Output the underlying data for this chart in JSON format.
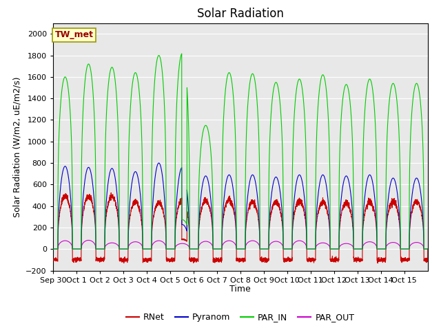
{
  "title": "Solar Radiation",
  "ylabel": "Solar Radiation (W/m2, uE/m2/s)",
  "xlabel": "Time",
  "site_label": "TW_met",
  "ylim": [
    -200,
    2100
  ],
  "yticks": [
    -200,
    0,
    200,
    400,
    600,
    800,
    1000,
    1200,
    1400,
    1600,
    1800,
    2000
  ],
  "bg_color": "#e8e8e8",
  "line_colors": {
    "RNet": "#cc0000",
    "Pyranom": "#0000cc",
    "PAR_IN": "#00cc00",
    "PAR_OUT": "#cc00cc"
  },
  "n_days": 16,
  "xtick_labels": [
    "Sep 30",
    "Oct 1",
    "Oct 2",
    "Oct 3",
    "Oct 4",
    "Oct 5",
    "Oct 6",
    "Oct 7",
    "Oct 8",
    "Oct 9",
    "Oct 10",
    "Oct 11",
    "Oct 12",
    "Oct 13",
    "Oct 14",
    "Oct 15"
  ],
  "PAR_IN_peaks": [
    1600,
    1720,
    1690,
    1640,
    1800,
    1820,
    1150,
    1640,
    1630,
    1550,
    1580,
    1620,
    1530,
    1580,
    1540,
    1540
  ],
  "Pyranom_peaks": [
    770,
    760,
    750,
    720,
    800,
    760,
    680,
    690,
    690,
    670,
    690,
    690,
    680,
    690,
    660,
    660
  ],
  "RNet_peaks": [
    490,
    490,
    490,
    440,
    430,
    460,
    450,
    460,
    440,
    440,
    450,
    440,
    430,
    440,
    445,
    445
  ],
  "PAR_OUT_peaks": [
    78,
    82,
    58,
    68,
    78,
    52,
    72,
    78,
    78,
    72,
    78,
    58,
    52,
    68,
    62,
    62
  ],
  "RNet_night": -100,
  "title_fontsize": 12,
  "label_fontsize": 9,
  "tick_fontsize": 8
}
